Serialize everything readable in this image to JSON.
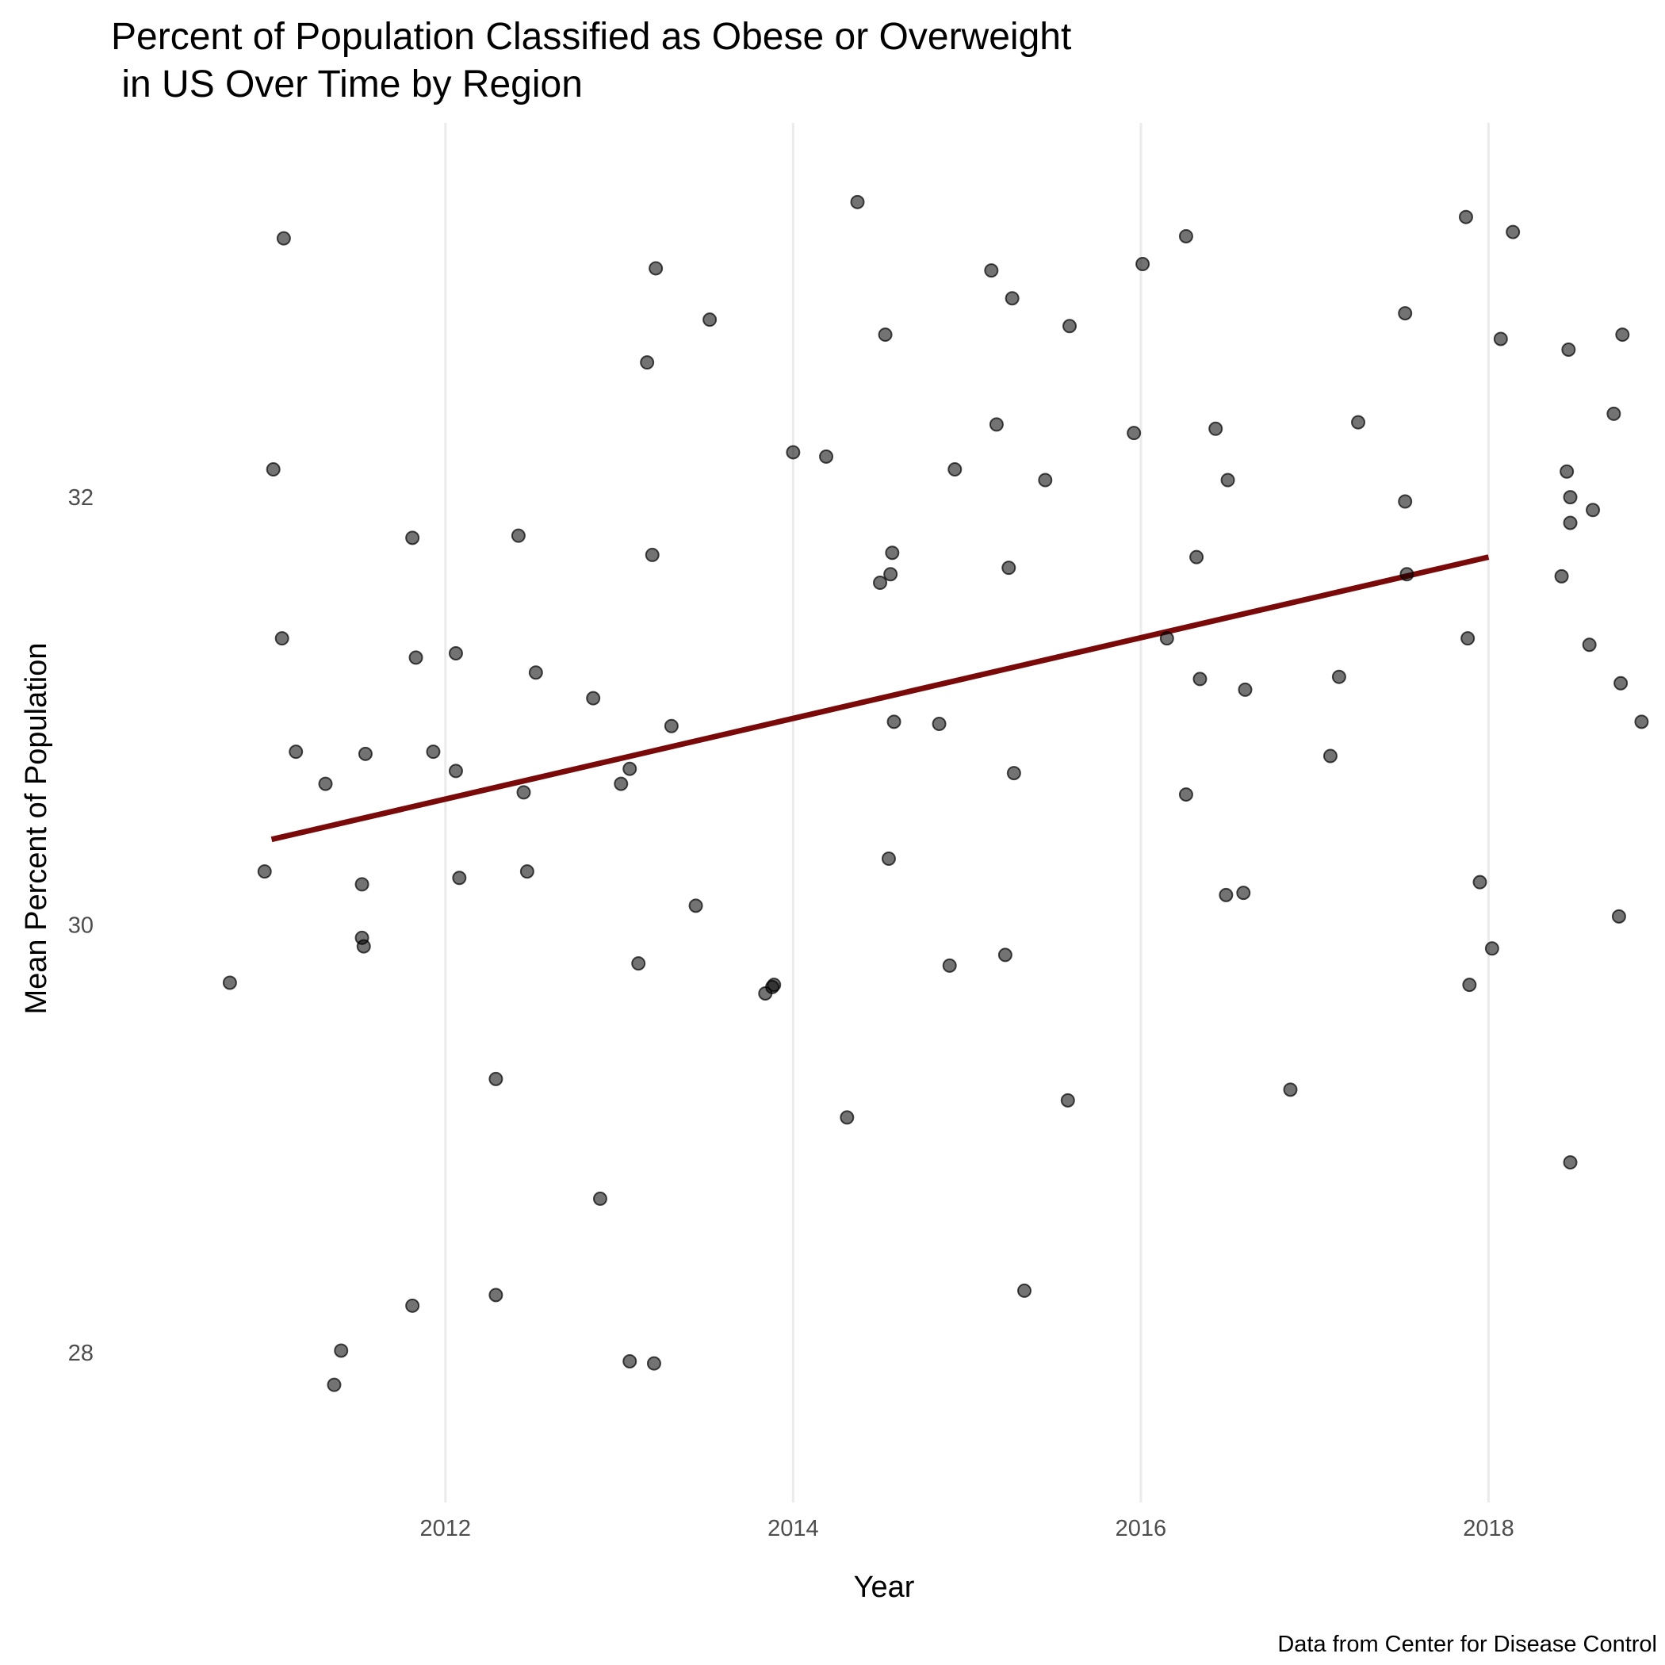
{
  "chart_data": {
    "type": "scatter",
    "title_line1": "Percent of Population Classified as Obese or Overweight",
    "title_line2": " in US Over Time by Region",
    "xlabel": "Year",
    "ylabel": "Mean Percent of Population",
    "caption": "Data from Center for Disease Control",
    "xlim": [
      2010.35,
      2018.65
    ],
    "ylim": [
      27.3,
      33.75
    ],
    "x_ticks": [
      2012,
      2014,
      2016,
      2018
    ],
    "y_ticks": [
      28,
      30,
      32
    ],
    "grid": {
      "vertical_major": true,
      "horizontal": false
    },
    "points_color": "#000000",
    "trend_color": "#7a0a0a",
    "trend": {
      "x": [
        2011,
        2018
      ],
      "y": [
        30.4,
        31.72
      ]
    },
    "points": [
      [
        2010.76,
        29.73
      ],
      [
        2010.96,
        30.25
      ],
      [
        2011.01,
        32.13
      ],
      [
        2011.06,
        31.34
      ],
      [
        2011.07,
        33.21
      ],
      [
        2011.14,
        30.81
      ],
      [
        2011.31,
        30.66
      ],
      [
        2011.36,
        27.85
      ],
      [
        2011.4,
        28.01
      ],
      [
        2011.52,
        30.19
      ],
      [
        2011.52,
        29.94
      ],
      [
        2011.53,
        29.9
      ],
      [
        2011.54,
        30.8
      ],
      [
        2011.81,
        28.22
      ],
      [
        2011.81,
        31.81
      ],
      [
        2011.83,
        31.25
      ],
      [
        2011.93,
        30.81
      ],
      [
        2012.06,
        30.72
      ],
      [
        2012.06,
        31.27
      ],
      [
        2012.08,
        30.22
      ],
      [
        2012.29,
        29.28
      ],
      [
        2012.29,
        28.27
      ],
      [
        2012.42,
        31.82
      ],
      [
        2012.45,
        30.62
      ],
      [
        2012.47,
        30.25
      ],
      [
        2012.52,
        31.18
      ],
      [
        2012.85,
        31.06
      ],
      [
        2012.89,
        28.72
      ],
      [
        2013.01,
        30.66
      ],
      [
        2013.06,
        30.73
      ],
      [
        2013.06,
        27.96
      ],
      [
        2013.11,
        29.82
      ],
      [
        2013.16,
        32.63
      ],
      [
        2013.19,
        31.73
      ],
      [
        2013.2,
        27.95
      ],
      [
        2013.21,
        33.07
      ],
      [
        2013.3,
        30.93
      ],
      [
        2013.44,
        30.09
      ],
      [
        2013.52,
        32.83
      ],
      [
        2013.84,
        29.68
      ],
      [
        2013.88,
        29.71
      ],
      [
        2013.89,
        29.72
      ],
      [
        2014.0,
        32.21
      ],
      [
        2014.19,
        32.19
      ],
      [
        2014.31,
        29.1
      ],
      [
        2014.37,
        33.38
      ],
      [
        2014.5,
        31.6
      ],
      [
        2014.53,
        32.76
      ],
      [
        2014.55,
        30.31
      ],
      [
        2014.56,
        31.64
      ],
      [
        2014.57,
        31.74
      ],
      [
        2014.58,
        30.95
      ],
      [
        2014.84,
        30.94
      ],
      [
        2014.9,
        29.81
      ],
      [
        2014.93,
        32.13
      ],
      [
        2015.14,
        33.06
      ],
      [
        2015.17,
        32.34
      ],
      [
        2015.22,
        29.86
      ],
      [
        2015.24,
        31.67
      ],
      [
        2015.26,
        32.93
      ],
      [
        2015.27,
        30.71
      ],
      [
        2015.33,
        28.29
      ],
      [
        2015.45,
        32.08
      ],
      [
        2015.58,
        29.18
      ],
      [
        2015.59,
        32.8
      ],
      [
        2015.96,
        32.3
      ],
      [
        2016.01,
        33.09
      ],
      [
        2016.15,
        31.34
      ],
      [
        2016.26,
        30.61
      ],
      [
        2016.26,
        33.22
      ],
      [
        2016.32,
        31.72
      ],
      [
        2016.34,
        31.15
      ],
      [
        2016.43,
        32.32
      ],
      [
        2016.49,
        30.14
      ],
      [
        2016.5,
        32.08
      ],
      [
        2016.59,
        30.15
      ],
      [
        2016.6,
        31.1
      ],
      [
        2016.86,
        29.23
      ],
      [
        2017.09,
        30.79
      ],
      [
        2017.14,
        31.16
      ],
      [
        2017.25,
        32.35
      ],
      [
        2017.52,
        31.98
      ],
      [
        2017.52,
        32.86
      ],
      [
        2017.53,
        31.64
      ],
      [
        2017.87,
        33.31
      ],
      [
        2017.88,
        31.34
      ],
      [
        2017.89,
        29.72
      ],
      [
        2017.95,
        30.2
      ],
      [
        2018.02,
        29.89
      ],
      [
        2018.07,
        32.74
      ],
      [
        2018.14,
        33.24
      ],
      [
        2018.42,
        31.63
      ],
      [
        2018.45,
        32.12
      ],
      [
        2018.46,
        32.69
      ],
      [
        2018.47,
        32.0
      ],
      [
        2018.47,
        31.88
      ],
      [
        2018.47,
        28.89
      ],
      [
        2018.58,
        31.31
      ],
      [
        2018.6,
        31.94
      ],
      [
        2018.72,
        32.39
      ],
      [
        2018.75,
        30.04
      ],
      [
        2018.76,
        31.13
      ],
      [
        2018.77,
        32.76
      ],
      [
        2018.88,
        30.95
      ]
    ]
  }
}
